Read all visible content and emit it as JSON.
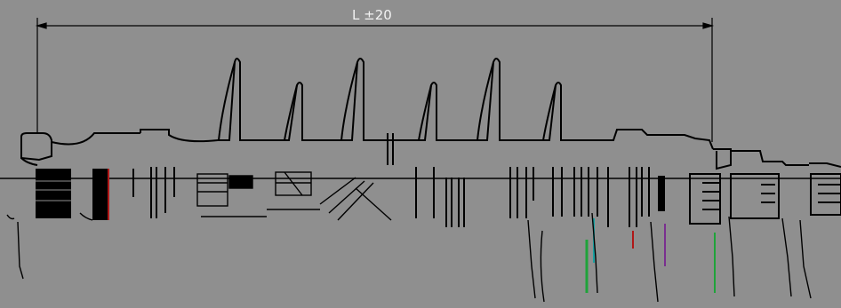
{
  "dimension": {
    "label": "L ±20"
  },
  "colors": {
    "background": "#8f8f8f",
    "line": "#000000",
    "label": "#f2f2f2",
    "artifact_red": "#b01818",
    "artifact_green": "#1fa33a",
    "artifact_teal": "#19a0a0",
    "artifact_purple": "#7a2f8f"
  }
}
